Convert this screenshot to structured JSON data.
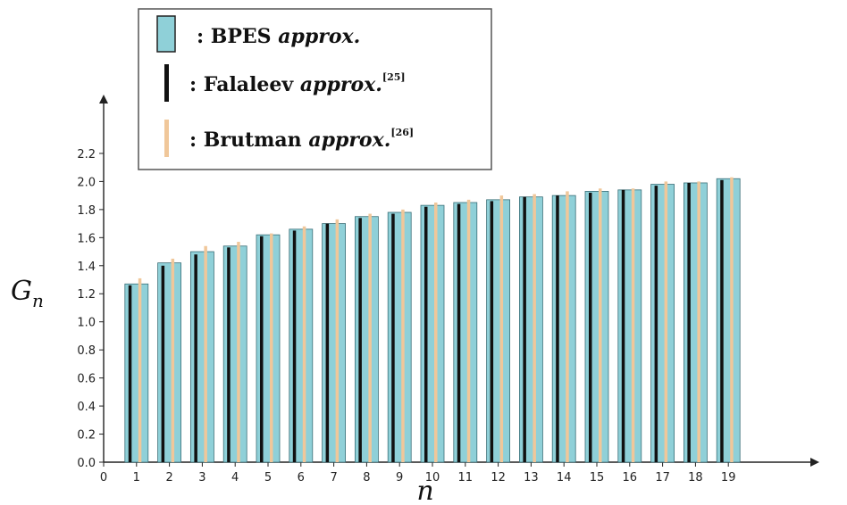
{
  "chart_data": {
    "type": "bar",
    "title": "",
    "xlabel": "n",
    "ylabel": "G",
    "ylabel_sub": "n",
    "xlim": [
      0,
      20
    ],
    "ylim": [
      0,
      2.2
    ],
    "x_ticks": [
      "0",
      "1",
      "2",
      "3",
      "4",
      "5",
      "6",
      "7",
      "8",
      "9",
      "10",
      "11",
      "12",
      "13",
      "14",
      "15",
      "16",
      "17",
      "18",
      "19"
    ],
    "y_ticks": [
      "0.0",
      "0.2",
      "0.4",
      "0.6",
      "0.8",
      "1.0",
      "1.2",
      "1.4",
      "1.6",
      "1.8",
      "2.0",
      "2.2"
    ],
    "categories": [
      1,
      2,
      3,
      4,
      5,
      6,
      7,
      8,
      9,
      10,
      11,
      12,
      13,
      14,
      15,
      16,
      17,
      18,
      19
    ],
    "series": [
      {
        "name": "BPES approx.",
        "color": "#8fd0d8",
        "values": [
          1.27,
          1.42,
          1.5,
          1.54,
          1.62,
          1.66,
          1.7,
          1.75,
          1.78,
          1.83,
          1.85,
          1.87,
          1.89,
          1.9,
          1.93,
          1.94,
          1.98,
          1.99,
          2.02
        ]
      },
      {
        "name": "Falaleev approx.",
        "sup": "[25]",
        "color": "#111111",
        "values": [
          1.26,
          1.4,
          1.48,
          1.53,
          1.61,
          1.65,
          1.7,
          1.74,
          1.77,
          1.82,
          1.84,
          1.86,
          1.89,
          1.9,
          1.92,
          1.94,
          1.97,
          1.99,
          2.01
        ]
      },
      {
        "name": "Brutman approx.",
        "sup": "[26]",
        "color": "#f0c79a",
        "values": [
          1.31,
          1.45,
          1.54,
          1.57,
          1.63,
          1.68,
          1.73,
          1.77,
          1.8,
          1.85,
          1.87,
          1.9,
          1.91,
          1.93,
          1.95,
          1.95,
          2.0,
          2.0,
          2.03
        ]
      }
    ],
    "grid": false,
    "legend_position": "top-left"
  }
}
